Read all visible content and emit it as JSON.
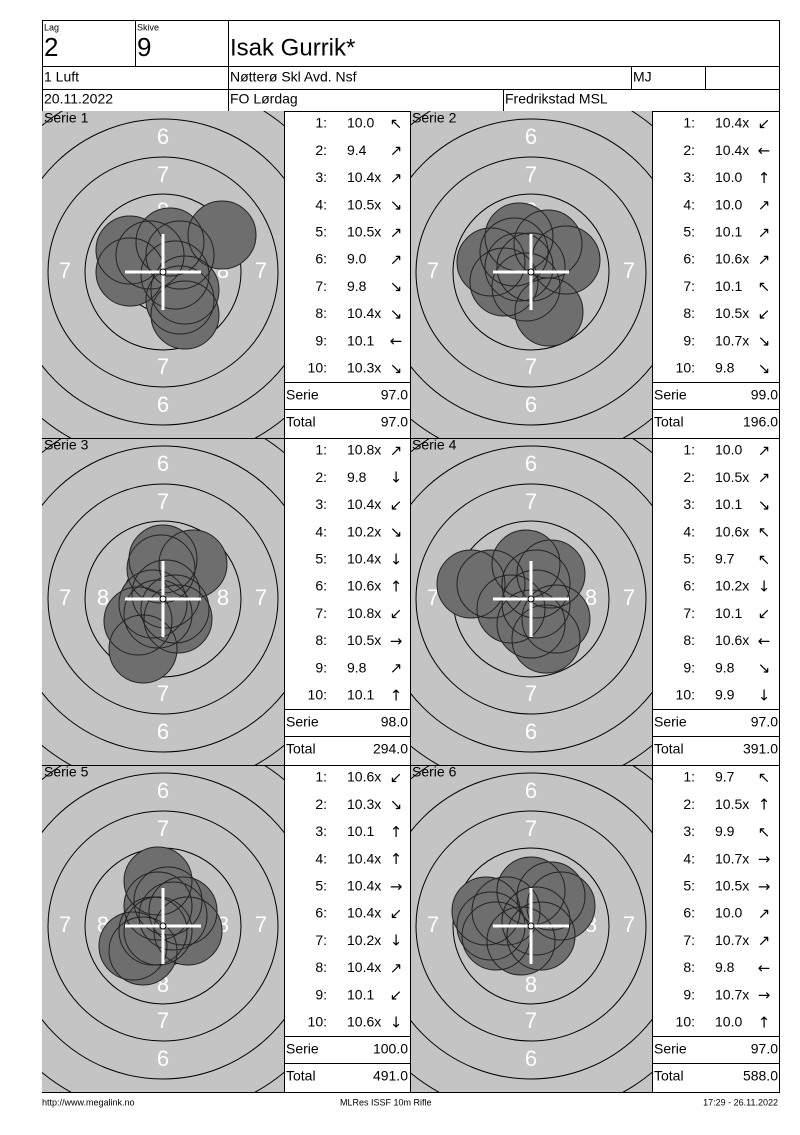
{
  "header": {
    "lag_label": "Lag",
    "lag": "2",
    "skive_label": "Skive",
    "skive": "9",
    "name": "Isak Gurrik*",
    "class": "1 Luft",
    "club": "Nøtterø Skl Avd. Nsf",
    "code": "MJ",
    "date": "20.11.2022",
    "event": "FO Lørdag",
    "venue": "Fredrikstad MSL"
  },
  "target_labels": {
    "outer": "6",
    "middle": "7",
    "inner": "8"
  },
  "series": [
    {
      "title": "Serie 1",
      "shots": [
        {
          "no": "1:",
          "score": "10.0",
          "dir": "↖"
        },
        {
          "no": "2:",
          "score": "9.4",
          "dir": "↗"
        },
        {
          "no": "3:",
          "score": "10.4x",
          "dir": "↗"
        },
        {
          "no": "4:",
          "score": "10.5x",
          "dir": "↘"
        },
        {
          "no": "5:",
          "score": "10.5x",
          "dir": "↗"
        },
        {
          "no": "6:",
          "score": "9.0",
          "dir": "↗"
        },
        {
          "no": "7:",
          "score": "9.8",
          "dir": "↘"
        },
        {
          "no": "8:",
          "score": "10.4x",
          "dir": "↘"
        },
        {
          "no": "9:",
          "score": "10.1",
          "dir": "←"
        },
        {
          "no": "10:",
          "score": "10.3x",
          "dir": "↘"
        }
      ],
      "serie_label": "Serie",
      "serie": "97.0",
      "total_label": "Total",
      "total": "97.0"
    },
    {
      "title": "Serie 2",
      "shots": [
        {
          "no": "1:",
          "score": "10.4x",
          "dir": "↙"
        },
        {
          "no": "2:",
          "score": "10.4x",
          "dir": "←"
        },
        {
          "no": "3:",
          "score": "10.0",
          "dir": "↑"
        },
        {
          "no": "4:",
          "score": "10.0",
          "dir": "↗"
        },
        {
          "no": "5:",
          "score": "10.1",
          "dir": "↗"
        },
        {
          "no": "6:",
          "score": "10.6x",
          "dir": "↗"
        },
        {
          "no": "7:",
          "score": "10.1",
          "dir": "↖"
        },
        {
          "no": "8:",
          "score": "10.5x",
          "dir": "↙"
        },
        {
          "no": "9:",
          "score": "10.7x",
          "dir": "↘"
        },
        {
          "no": "10:",
          "score": "9.8",
          "dir": "↘"
        }
      ],
      "serie_label": "Serie",
      "serie": "99.0",
      "total_label": "Total",
      "total": "196.0"
    },
    {
      "title": "Serie 3",
      "shots": [
        {
          "no": "1:",
          "score": "10.8x",
          "dir": "↗"
        },
        {
          "no": "2:",
          "score": "9.8",
          "dir": "↓"
        },
        {
          "no": "3:",
          "score": "10.4x",
          "dir": "↙"
        },
        {
          "no": "4:",
          "score": "10.2x",
          "dir": "↘"
        },
        {
          "no": "5:",
          "score": "10.4x",
          "dir": "↓"
        },
        {
          "no": "6:",
          "score": "10.6x",
          "dir": "↑"
        },
        {
          "no": "7:",
          "score": "10.8x",
          "dir": "↙"
        },
        {
          "no": "8:",
          "score": "10.5x",
          "dir": "→"
        },
        {
          "no": "9:",
          "score": "9.8",
          "dir": "↗"
        },
        {
          "no": "10:",
          "score": "10.1",
          "dir": "↑"
        }
      ],
      "serie_label": "Serie",
      "serie": "98.0",
      "total_label": "Total",
      "total": "294.0"
    },
    {
      "title": "Serie 4",
      "shots": [
        {
          "no": "1:",
          "score": "10.0",
          "dir": "↗"
        },
        {
          "no": "2:",
          "score": "10.5x",
          "dir": "↗"
        },
        {
          "no": "3:",
          "score": "10.1",
          "dir": "↘"
        },
        {
          "no": "4:",
          "score": "10.6x",
          "dir": "↖"
        },
        {
          "no": "5:",
          "score": "9.7",
          "dir": "↖"
        },
        {
          "no": "6:",
          "score": "10.2x",
          "dir": "↓"
        },
        {
          "no": "7:",
          "score": "10.1",
          "dir": "↙"
        },
        {
          "no": "8:",
          "score": "10.6x",
          "dir": "←"
        },
        {
          "no": "9:",
          "score": "9.8",
          "dir": "↘"
        },
        {
          "no": "10:",
          "score": "9.9",
          "dir": "↓"
        }
      ],
      "serie_label": "Serie",
      "serie": "97.0",
      "total_label": "Total",
      "total": "391.0"
    },
    {
      "title": "Serie 5",
      "shots": [
        {
          "no": "1:",
          "score": "10.6x",
          "dir": "↙"
        },
        {
          "no": "2:",
          "score": "10.3x",
          "dir": "↘"
        },
        {
          "no": "3:",
          "score": "10.1",
          "dir": "↑"
        },
        {
          "no": "4:",
          "score": "10.4x",
          "dir": "↑"
        },
        {
          "no": "5:",
          "score": "10.4x",
          "dir": "→"
        },
        {
          "no": "6:",
          "score": "10.4x",
          "dir": "↙"
        },
        {
          "no": "7:",
          "score": "10.2x",
          "dir": "↓"
        },
        {
          "no": "8:",
          "score": "10.4x",
          "dir": "↗"
        },
        {
          "no": "9:",
          "score": "10.1",
          "dir": "↙"
        },
        {
          "no": "10:",
          "score": "10.6x",
          "dir": "↓"
        }
      ],
      "serie_label": "Serie",
      "serie": "100.0",
      "total_label": "Total",
      "total": "491.0"
    },
    {
      "title": "Serie 6",
      "shots": [
        {
          "no": "1:",
          "score": "9.7",
          "dir": "↖"
        },
        {
          "no": "2:",
          "score": "10.5x",
          "dir": "↑"
        },
        {
          "no": "3:",
          "score": "9.9",
          "dir": "↖"
        },
        {
          "no": "4:",
          "score": "10.7x",
          "dir": "→"
        },
        {
          "no": "5:",
          "score": "10.5x",
          "dir": "→"
        },
        {
          "no": "6:",
          "score": "10.0",
          "dir": "↗"
        },
        {
          "no": "7:",
          "score": "10.7x",
          "dir": "↗"
        },
        {
          "no": "8:",
          "score": "9.8",
          "dir": "←"
        },
        {
          "no": "9:",
          "score": "10.7x",
          "dir": "→"
        },
        {
          "no": "10:",
          "score": "10.0",
          "dir": "↑"
        }
      ],
      "serie_label": "Serie",
      "serie": "97.0",
      "total_label": "Total",
      "total": "588.0"
    }
  ],
  "footer": {
    "url": "http://www.megalink.no",
    "program": "MLRes ISSF 10m Rifle",
    "timestamp": "17:29 - 26.11.2022"
  }
}
